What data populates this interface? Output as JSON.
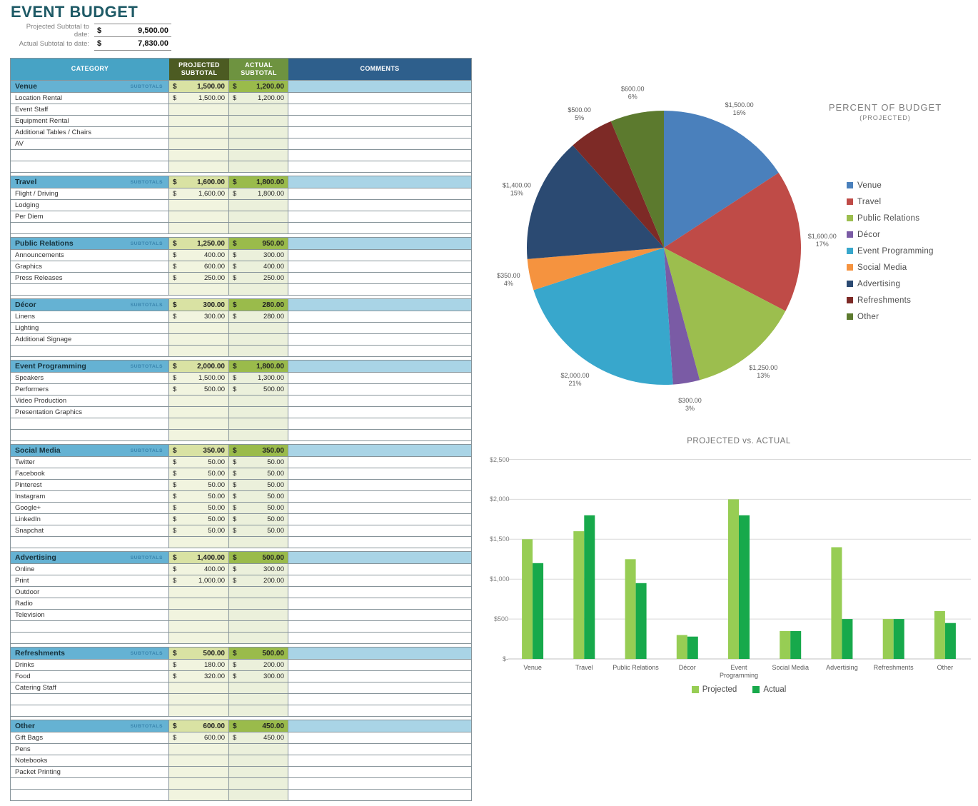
{
  "title": "EVENT BUDGET",
  "summary": {
    "rows": [
      {
        "label": "Projected Subtotal to date:",
        "currency": "$",
        "value": "9,500.00"
      },
      {
        "label": "Actual Subtotal to date:",
        "currency": "$",
        "value": "7,830.00"
      }
    ]
  },
  "colors": {
    "title_text": "#1E5A66",
    "cat_header": "#47A3C5",
    "proj_header": "#4C5B22",
    "act_header": "#6E9340",
    "comments_header": "#2E5F8C",
    "section_bg": "#65B2D3",
    "section_comments_bg": "#A9D4E6",
    "section_proj_bg": "#D9E2A3",
    "section_act_bg": "#9ABB4B",
    "item_proj_bg": "#F1F4DF",
    "item_act_bg": "#EBF0DB",
    "row_border": "#87949A",
    "subtotals_text": "#3A85AE"
  },
  "table": {
    "columns": [
      "CATEGORY",
      "PROJECTED SUBTOTAL",
      "ACTUAL SUBTOTAL",
      "COMMENTS"
    ],
    "subtotals_label": "SUBTOTALS",
    "currency": "$",
    "sections": [
      {
        "name": "Venue",
        "projected": "1,500.00",
        "actual": "1,200.00",
        "items": [
          {
            "label": "Location Rental",
            "p": "1,500.00",
            "a": "1,200.00"
          },
          {
            "label": "Event Staff"
          },
          {
            "label": "Equipment Rental"
          },
          {
            "label": "Additional Tables / Chairs"
          },
          {
            "label": "AV"
          },
          {},
          {}
        ]
      },
      {
        "name": "Travel",
        "projected": "1,600.00",
        "actual": "1,800.00",
        "items": [
          {
            "label": "Flight / Driving",
            "p": "1,600.00",
            "a": "1,800.00"
          },
          {
            "label": "Lodging"
          },
          {
            "label": "Per Diem"
          },
          {}
        ]
      },
      {
        "name": "Public Relations",
        "projected": "1,250.00",
        "actual": "950.00",
        "items": [
          {
            "label": "Announcements",
            "p": "400.00",
            "a": "300.00"
          },
          {
            "label": "Graphics",
            "p": "600.00",
            "a": "400.00"
          },
          {
            "label": "Press Releases",
            "p": "250.00",
            "a": "250.00"
          },
          {}
        ]
      },
      {
        "name": "Décor",
        "projected": "300.00",
        "actual": "280.00",
        "items": [
          {
            "label": "Linens",
            "p": "300.00",
            "a": "280.00"
          },
          {
            "label": "Lighting"
          },
          {
            "label": "Additional Signage"
          },
          {}
        ]
      },
      {
        "name": "Event Programming",
        "projected": "2,000.00",
        "actual": "1,800.00",
        "items": [
          {
            "label": "Speakers",
            "p": "1,500.00",
            "a": "1,300.00"
          },
          {
            "label": "Performers",
            "p": "500.00",
            "a": "500.00"
          },
          {
            "label": "Video Production"
          },
          {
            "label": "Presentation Graphics"
          },
          {},
          {}
        ]
      },
      {
        "name": "Social Media",
        "projected": "350.00",
        "actual": "350.00",
        "items": [
          {
            "label": "Twitter",
            "p": "50.00",
            "a": "50.00"
          },
          {
            "label": "Facebook",
            "p": "50.00",
            "a": "50.00"
          },
          {
            "label": "Pinterest",
            "p": "50.00",
            "a": "50.00"
          },
          {
            "label": "Instagram",
            "p": "50.00",
            "a": "50.00"
          },
          {
            "label": "Google+",
            "p": "50.00",
            "a": "50.00"
          },
          {
            "label": "LinkedIn",
            "p": "50.00",
            "a": "50.00"
          },
          {
            "label": "Snapchat",
            "p": "50.00",
            "a": "50.00"
          },
          {}
        ]
      },
      {
        "name": "Advertising",
        "projected": "1,400.00",
        "actual": "500.00",
        "items": [
          {
            "label": "Online",
            "p": "400.00",
            "a": "300.00"
          },
          {
            "label": "Print",
            "p": "1,000.00",
            "a": "200.00"
          },
          {
            "label": "Outdoor"
          },
          {
            "label": "Radio"
          },
          {
            "label": "Television"
          },
          {},
          {}
        ]
      },
      {
        "name": "Refreshments",
        "projected": "500.00",
        "actual": "500.00",
        "items": [
          {
            "label": "Drinks",
            "p": "180.00",
            "a": "200.00"
          },
          {
            "label": "Food",
            "p": "320.00",
            "a": "300.00"
          },
          {
            "label": "Catering Staff"
          },
          {},
          {}
        ]
      },
      {
        "name": "Other",
        "projected": "600.00",
        "actual": "450.00",
        "items": [
          {
            "label": "Gift Bags",
            "p": "600.00",
            "a": "450.00"
          },
          {
            "label": "Pens"
          },
          {
            "label": "Notebooks"
          },
          {
            "label": "Packet Printing"
          },
          {},
          {}
        ]
      }
    ]
  },
  "chart_data": [
    {
      "type": "pie",
      "title": "PERCENT OF BUDGET",
      "subtitle": "(PROJECTED)",
      "labels": [
        "Venue",
        "Travel",
        "Public Relations",
        "Décor",
        "Event Programming",
        "Social Media",
        "Advertising",
        "Refreshments",
        "Other"
      ],
      "values": [
        1500,
        1600,
        1250,
        300,
        2000,
        350,
        1400,
        500,
        600
      ],
      "value_labels": [
        "$1,500.00",
        "$1,600.00",
        "$1,250.00",
        "$300.00",
        "$2,000.00",
        "$350.00",
        "$1,400.00",
        "$500.00",
        "$600.00"
      ],
      "percent_labels": [
        "16%",
        "17%",
        "13%",
        "3%",
        "21%",
        "4%",
        "15%",
        "5%",
        "6%"
      ],
      "colors": [
        "#4A80BC",
        "#BF4B47",
        "#9CBE4E",
        "#7A5BA5",
        "#38A7CC",
        "#F5933F",
        "#2B4A72",
        "#7D2A26",
        "#5C7A2E"
      ],
      "legend_position": "right"
    },
    {
      "type": "bar",
      "title": "PROJECTED vs. ACTUAL",
      "categories": [
        "Venue",
        "Travel",
        "Public Relations",
        "Décor",
        "Event Programming",
        "Social Media",
        "Advertising",
        "Refreshments",
        "Other"
      ],
      "series": [
        {
          "name": "Projected",
          "color": "#97CD54",
          "values": [
            1500,
            1600,
            1250,
            300,
            2000,
            350,
            1400,
            500,
            600
          ]
        },
        {
          "name": "Actual",
          "color": "#17A94B",
          "values": [
            1200,
            1800,
            950,
            280,
            1800,
            350,
            500,
            500,
            450
          ]
        }
      ],
      "ylim": [
        0,
        2500
      ],
      "ytick_labels": [
        "$-",
        "$500",
        "$1,000",
        "$1,500",
        "$2,000",
        "$2,500"
      ],
      "grid": true,
      "legend_position": "bottom"
    }
  ]
}
